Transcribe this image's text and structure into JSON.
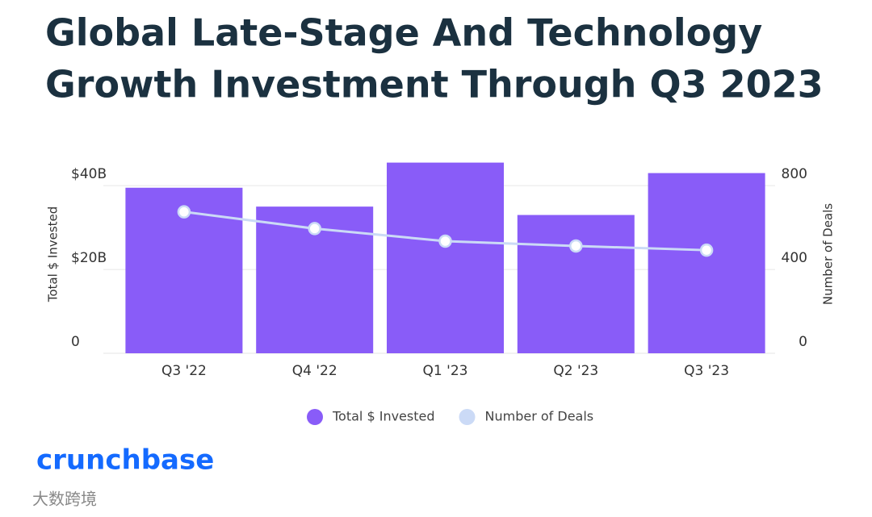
{
  "chart_data": {
    "type": "bar-line",
    "title": [
      "Global Late-Stage And Technology",
      "Growth Investment Through Q3 2023"
    ],
    "ylabel": "Total $ Invested",
    "y2label": "Number of Deals",
    "categories": [
      "Q3 '22",
      "Q4 '22",
      "Q1 '23",
      "Q2 '23",
      "Q3 '23"
    ],
    "series": [
      {
        "name": "Total $ Invested",
        "type": "bar",
        "color": "#895cf8",
        "values": [
          39.5,
          35,
          45.5,
          33,
          43
        ]
      },
      {
        "name": "Number of Deals",
        "type": "line",
        "axis": "y2",
        "color": "#cbdaf6",
        "values": [
          675,
          595,
          535,
          512,
          492
        ]
      }
    ],
    "ylim": [
      0,
      46
    ],
    "yticks": [
      {
        "value": 0,
        "label": "0"
      },
      {
        "value": 20,
        "label": "$20B"
      },
      {
        "value": 40,
        "label": "$40B"
      }
    ],
    "y2lim": [
      0,
      920
    ],
    "y2ticks": [
      0,
      400,
      800
    ],
    "grid": true,
    "legend": "bottom",
    "brand": "crunchbase",
    "watermark": "大数跨境"
  }
}
